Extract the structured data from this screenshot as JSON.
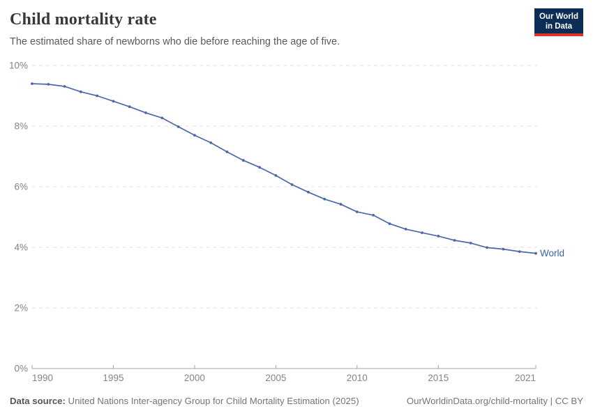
{
  "header": {
    "title": "Child mortality rate",
    "subtitle": "The estimated share of newborns who die before reaching the age of five.",
    "logo": {
      "line1": "Our World",
      "line2": "in Data"
    }
  },
  "chart_data": {
    "type": "line",
    "title": "Child mortality rate",
    "subtitle": "The estimated share of newborns who die before reaching the age of five.",
    "unit": "%",
    "x": [
      1990,
      1991,
      1992,
      1993,
      1994,
      1995,
      1996,
      1997,
      1998,
      1999,
      2000,
      2001,
      2002,
      2003,
      2004,
      2005,
      2006,
      2007,
      2008,
      2009,
      2010,
      2011,
      2012,
      2013,
      2014,
      2015,
      2016,
      2017,
      2018,
      2019,
      2020,
      2021
    ],
    "series": [
      {
        "name": "World",
        "values": [
          9.4,
          9.38,
          9.31,
          9.13,
          9.0,
          8.82,
          8.64,
          8.44,
          8.27,
          7.98,
          7.7,
          7.45,
          7.15,
          6.87,
          6.64,
          6.37,
          6.07,
          5.82,
          5.59,
          5.42,
          5.17,
          5.06,
          4.78,
          4.6,
          4.48,
          4.37,
          4.23,
          4.14,
          3.99,
          3.94,
          3.86,
          3.8
        ]
      }
    ],
    "xlim": [
      1990,
      2021
    ],
    "ylim": [
      0,
      10
    ],
    "xticks": [
      1990,
      1995,
      2000,
      2005,
      2010,
      2015,
      2021
    ],
    "yticks": [
      0,
      2,
      4,
      6,
      8,
      10
    ],
    "ytick_suffix": "%",
    "grid": "dashed horizontal",
    "legend_position": "end-of-line label",
    "colors": {
      "line": "#4a69a8",
      "series_label": "#3b63a6",
      "grid": "#e0e0e0",
      "axis": "#a3a3a3",
      "tick_label": "#858585"
    }
  },
  "footer": {
    "source_label": "Data source:",
    "source_text": " United Nations Inter-agency Group for Child Mortality Estimation (2025)",
    "credit": "OurWorldinData.org/child-mortality | CC BY"
  }
}
